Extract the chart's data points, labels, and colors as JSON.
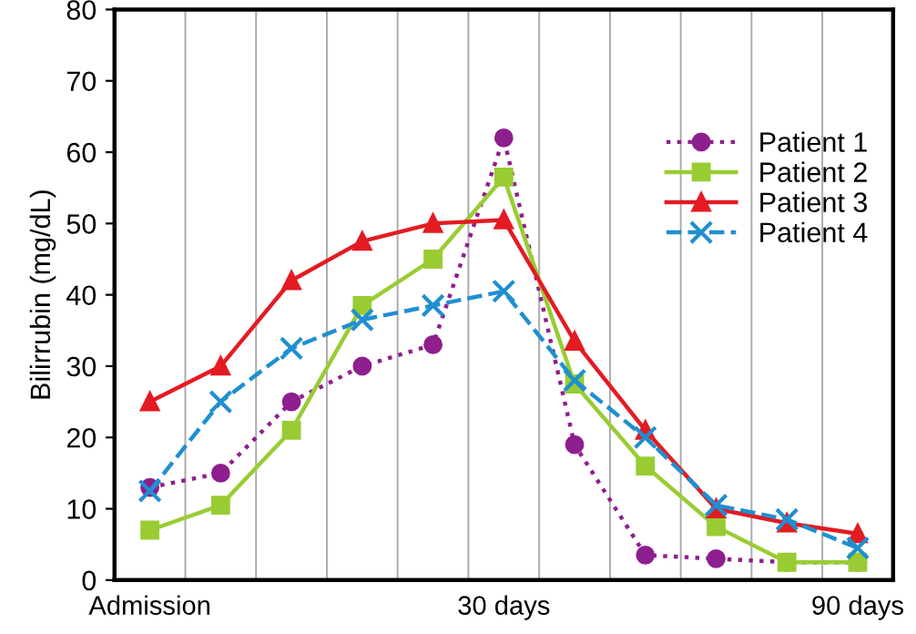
{
  "chart_data": {
    "type": "line",
    "ylabel": "Bilirrubin (mg/dL)",
    "categories": [
      "Admission",
      null,
      null,
      null,
      null,
      "30 days",
      null,
      null,
      null,
      null,
      "90 days"
    ],
    "ylim": [
      0,
      80
    ],
    "yticks": [
      0,
      10,
      20,
      30,
      40,
      50,
      60,
      70,
      80
    ],
    "grid": "x",
    "legend": "top right",
    "series": [
      {
        "name": "Patient 1",
        "color": "#8e1f8e",
        "marker": "circle",
        "line_style": "dotted",
        "values": [
          13,
          15,
          25,
          30,
          33,
          62,
          19,
          3.5,
          3,
          2.5,
          2.5
        ]
      },
      {
        "name": "Patient 2",
        "color": "#99cc33",
        "marker": "square",
        "line_style": "solid",
        "values": [
          7,
          10.5,
          21,
          38.5,
          45,
          56.5,
          27.5,
          16,
          7.5,
          2.5,
          2.5
        ]
      },
      {
        "name": "Patient 3",
        "color": "#e31b23",
        "marker": "triangle",
        "line_style": "solid",
        "values": [
          25,
          30,
          42,
          47.5,
          50,
          50.5,
          33.5,
          21,
          10,
          8,
          6.5
        ]
      },
      {
        "name": "Patient 4",
        "color": "#1f8fd0",
        "marker": "cross",
        "line_style": "dashed",
        "values": [
          12.5,
          25,
          32.5,
          36.5,
          38.5,
          40.5,
          28,
          20,
          10.5,
          8.5,
          4.5
        ]
      }
    ]
  }
}
